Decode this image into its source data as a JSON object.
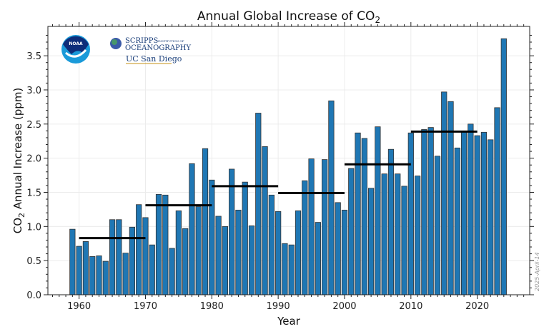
{
  "chart_data": {
    "type": "bar",
    "title": "Annual Global Increase of CO",
    "title_subscript": "2",
    "xlabel": "Year",
    "ylabel_prefix": "CO",
    "ylabel_subscript": "2",
    "ylabel_suffix": " Annual Increase (ppm)",
    "xlim": [
      1955.3,
      2027.9
    ],
    "ylim": [
      0,
      3.93
    ],
    "xticks": [
      1960,
      1970,
      1980,
      1990,
      2000,
      2010,
      2020
    ],
    "yticks": [
      "0.0",
      "0.5",
      "1.0",
      "1.5",
      "2.0",
      "2.5",
      "3.0",
      "3.5"
    ],
    "grid": true,
    "bar_color": "#1f77b4",
    "x": [
      1959,
      1960,
      1961,
      1962,
      1963,
      1964,
      1965,
      1966,
      1967,
      1968,
      1969,
      1970,
      1971,
      1972,
      1973,
      1974,
      1975,
      1976,
      1977,
      1978,
      1979,
      1980,
      1981,
      1982,
      1983,
      1984,
      1985,
      1986,
      1987,
      1988,
      1989,
      1990,
      1991,
      1992,
      1993,
      1994,
      1995,
      1996,
      1997,
      1998,
      1999,
      2000,
      2001,
      2002,
      2003,
      2004,
      2005,
      2006,
      2007,
      2008,
      2009,
      2010,
      2011,
      2012,
      2013,
      2014,
      2015,
      2016,
      2017,
      2018,
      2019,
      2020,
      2021,
      2022,
      2023,
      2024
    ],
    "values": [
      0.96,
      0.71,
      0.78,
      0.56,
      0.57,
      0.49,
      1.1,
      1.1,
      0.61,
      0.99,
      1.32,
      1.13,
      0.73,
      1.47,
      1.46,
      0.68,
      1.23,
      0.97,
      1.92,
      1.29,
      2.14,
      1.68,
      1.15,
      1.0,
      1.84,
      1.24,
      1.65,
      1.01,
      2.66,
      2.17,
      1.46,
      1.22,
      0.75,
      0.73,
      1.23,
      1.67,
      1.99,
      1.06,
      1.98,
      2.84,
      1.35,
      1.24,
      1.85,
      2.37,
      2.29,
      1.56,
      2.46,
      1.77,
      2.13,
      1.77,
      1.59,
      2.37,
      1.74,
      2.42,
      2.45,
      2.03,
      2.97,
      2.83,
      2.15,
      2.39,
      2.5,
      2.33,
      2.38,
      2.27,
      2.74,
      3.75
    ],
    "decade_averages": [
      {
        "start": 1960,
        "end": 1970,
        "value": 0.83
      },
      {
        "start": 1970,
        "end": 1980,
        "value": 1.31
      },
      {
        "start": 1980,
        "end": 1990,
        "value": 1.59
      },
      {
        "start": 1990,
        "end": 2000,
        "value": 1.49
      },
      {
        "start": 2000,
        "end": 2010,
        "value": 1.91
      },
      {
        "start": 2010,
        "end": 2020,
        "value": 2.39
      }
    ]
  },
  "logos": {
    "noaa": "NOAA",
    "scripps_line1": "SCRIPPS",
    "scripps_small": "INSTITUTION OF",
    "scripps_line2": "OCEANOGRAPHY",
    "ucsd": "UC San Diego"
  },
  "stamp": "2025-April-14"
}
